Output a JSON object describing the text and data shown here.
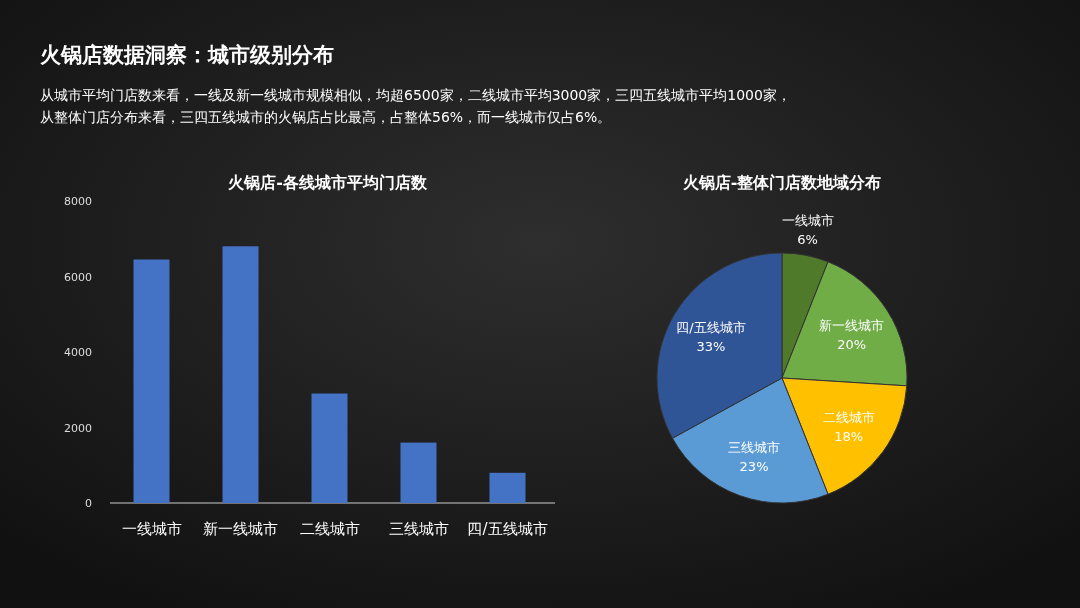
{
  "chart_data": [
    {
      "type": "other",
      "title": "火锅店数据洞察：城市级别分布",
      "subtitle": "从城市平均门店数来看，一线及新一线城市规模相似，均超6500家，二线城市平均3000家，三四五线城市平均1000家，从整体门店分布来看，三四五线城市的火锅店占比最高，占整体56%，而一线城市仅占6%。"
    },
    {
      "type": "bar",
      "title": "火锅店-各线城市平均门店数",
      "categories": [
        "一线城市",
        "新一线城市",
        "二线城市",
        "三线城市",
        "四/五线城市"
      ],
      "values": [
        6450,
        6800,
        2900,
        1600,
        800
      ],
      "color": "#4472c4",
      "ylim": [
        0,
        8000
      ],
      "yticks": [
        0,
        2000,
        4000,
        6000,
        8000
      ]
    },
    {
      "type": "pie",
      "title": "火锅店-整体门店数地域分布",
      "categories": [
        "一线城市",
        "新一线城市",
        "二线城市",
        "三线城市",
        "四/五线城市"
      ],
      "values": [
        6,
        20,
        18,
        23,
        33
      ],
      "colors": [
        "#4e7a2a",
        "#70ad47",
        "#ffc000",
        "#5b9bd5",
        "#2f5597"
      ],
      "value_labels": [
        "6%",
        "20%",
        "18%",
        "23%",
        "33%"
      ]
    }
  ]
}
